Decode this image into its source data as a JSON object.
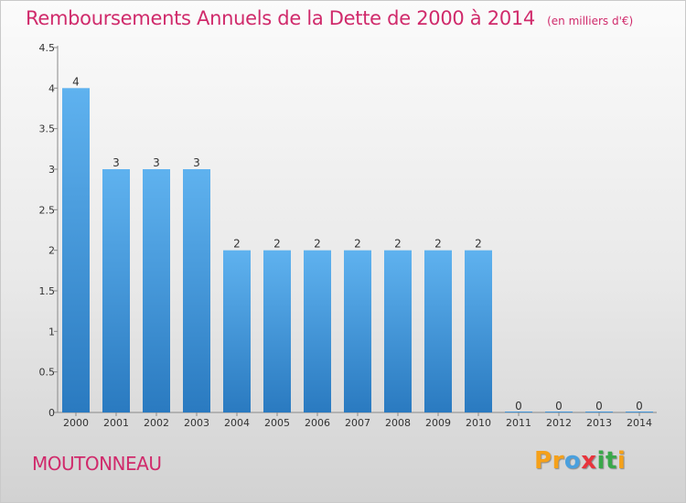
{
  "chart_data": {
    "type": "bar",
    "title": "Remboursements Annuels de la Dette de 2000 à 2014",
    "subtitle": "(en milliers d'€)",
    "categories": [
      "2000",
      "2001",
      "2002",
      "2003",
      "2004",
      "2005",
      "2006",
      "2007",
      "2008",
      "2009",
      "2010",
      "2011",
      "2012",
      "2013",
      "2014"
    ],
    "values": [
      4,
      3,
      3,
      3,
      2,
      2,
      2,
      2,
      2,
      2,
      2,
      0,
      0,
      0,
      0
    ],
    "ylim": [
      0,
      4.5
    ],
    "yticks": [
      0,
      0.5,
      1,
      1.5,
      2,
      2.5,
      3,
      3.5,
      4,
      4.5
    ],
    "ytick_labels": [
      "0",
      "0.5",
      "1",
      "1.5",
      "2",
      "2.5",
      "3",
      "3.5",
      "4",
      "4.5"
    ],
    "xlabel": "",
    "ylabel": "",
    "grid": false,
    "legend": "none",
    "bar_color_light": "#5fb2ef",
    "bar_color_dark": "#2a7ac0"
  },
  "commune": "MOUTONNEAU",
  "brand": {
    "letters": [
      "P",
      "r",
      "o",
      "x",
      "i",
      "t",
      "i"
    ],
    "colors": [
      "#f5a11a",
      "#f5a11a",
      "#4aa0de",
      "#e8343c",
      "#3aa84a",
      "#3aa84a",
      "#f5a11a"
    ]
  }
}
